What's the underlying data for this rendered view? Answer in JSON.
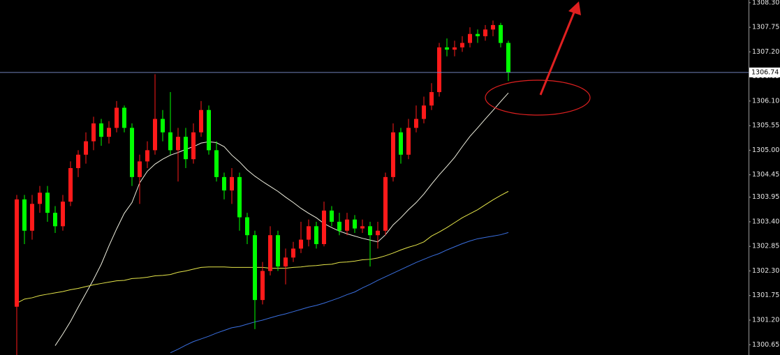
{
  "chart_data": {
    "type": "candlestick",
    "ylim": [
      1300.42,
      1308.36
    ],
    "yticks": [
      {
        "value": 1308.3,
        "label": "1308.30"
      },
      1307.75,
      {
        "value": 1307.2,
        "label": "1307.20"
      },
      1306.65,
      {
        "value": 1306.1,
        "label": "1306.10"
      },
      1305.55,
      {
        "value": 1305,
        "label": "1305.00"
      },
      1304.45,
      1303.95,
      {
        "value": 1303.4,
        "label": "1303.40"
      },
      1302.85,
      {
        "value": 1302.3,
        "label": "1302.30"
      },
      1301.75,
      {
        "value": 1301.2,
        "label": "1301.20"
      },
      1300.65
    ],
    "last_price": 1306.74,
    "up_color": "#ff1a1a",
    "down_color": "#00ff00",
    "last_price_line_color": "#6f7fb8",
    "open": [
      1301.5,
      1303.9,
      1303.2,
      1303.8,
      1304.05,
      1303.6,
      1303.3,
      1303.85,
      1304.6,
      1304.9,
      1305.2,
      1305.6,
      1305.3,
      1305.5,
      1305.95,
      1305.5,
      1304.4,
      1304.75,
      1305.0,
      1305.7,
      1305.4,
      1305.0,
      1305.3,
      1304.8,
      1305.4,
      1305.9,
      1305.0,
      1304.4,
      1304.1,
      1304.4,
      1303.5,
      1303.1,
      1301.65,
      1302.3,
      1303.1,
      1302.4,
      1302.6,
      1302.8,
      1303.0,
      1303.3,
      1302.9,
      1303.65,
      1303.4,
      1303.2,
      1303.45,
      1303.25,
      1303.3,
      1303.1,
      1303.2,
      1304.4,
      1305.4,
      1304.9,
      1305.5,
      1305.7,
      1306.0,
      1306.3,
      1307.3,
      1307.25,
      1307.3,
      1307.4,
      1307.6,
      1307.55,
      1307.7,
      1307.8,
      1307.4
    ],
    "high": [
      1304.0,
      1304.0,
      1304.0,
      1304.2,
      1304.2,
      1303.75,
      1304.0,
      1304.75,
      1305.0,
      1305.4,
      1305.75,
      1305.7,
      1305.65,
      1306.1,
      1306.0,
      1305.6,
      1304.9,
      1305.2,
      1306.7,
      1305.9,
      1306.3,
      1305.5,
      1305.5,
      1305.6,
      1306.1,
      1306.0,
      1305.2,
      1304.5,
      1304.6,
      1304.5,
      1303.6,
      1303.2,
      1302.5,
      1303.3,
      1303.2,
      1302.8,
      1302.95,
      1303.4,
      1303.45,
      1303.4,
      1303.85,
      1303.75,
      1303.6,
      1303.6,
      1303.55,
      1303.45,
      1303.4,
      1303.4,
      1304.5,
      1305.6,
      1305.5,
      1305.7,
      1306.0,
      1306.2,
      1306.5,
      1307.4,
      1307.5,
      1307.45,
      1307.55,
      1307.75,
      1307.7,
      1307.8,
      1307.9,
      1307.85,
      1307.45
    ],
    "low": [
      1300.4,
      1302.9,
      1303.0,
      1303.6,
      1303.4,
      1303.15,
      1303.2,
      1303.75,
      1304.4,
      1304.7,
      1305.0,
      1305.1,
      1305.15,
      1305.4,
      1305.4,
      1304.2,
      1303.8,
      1304.6,
      1304.9,
      1305.2,
      1304.9,
      1304.3,
      1304.6,
      1304.7,
      1305.3,
      1304.9,
      1304.3,
      1303.9,
      1303.8,
      1303.2,
      1302.9,
      1301.0,
      1301.55,
      1302.2,
      1302.3,
      1302.0,
      1302.5,
      1302.7,
      1302.85,
      1302.8,
      1302.85,
      1303.3,
      1303.1,
      1303.1,
      1303.15,
      1303.15,
      1302.4,
      1302.8,
      1303.1,
      1304.3,
      1304.7,
      1304.8,
      1305.4,
      1305.6,
      1305.9,
      1306.2,
      1307.1,
      1307.1,
      1307.2,
      1307.3,
      1307.4,
      1307.45,
      1307.55,
      1307.3,
      1306.55
    ],
    "close": [
      1303.9,
      1303.2,
      1303.8,
      1304.05,
      1303.6,
      1303.3,
      1303.85,
      1304.6,
      1304.9,
      1305.2,
      1305.6,
      1305.3,
      1305.5,
      1305.95,
      1305.5,
      1304.4,
      1304.75,
      1305.0,
      1305.7,
      1305.4,
      1305.0,
      1305.3,
      1304.8,
      1305.4,
      1305.9,
      1305.0,
      1304.4,
      1304.1,
      1304.4,
      1303.5,
      1303.1,
      1301.65,
      1302.3,
      1303.1,
      1302.4,
      1302.6,
      1302.8,
      1303.0,
      1303.3,
      1302.9,
      1303.65,
      1303.4,
      1303.2,
      1303.45,
      1303.25,
      1303.3,
      1303.1,
      1303.2,
      1304.4,
      1305.4,
      1304.9,
      1305.5,
      1305.7,
      1306.0,
      1306.3,
      1307.3,
      1307.25,
      1307.3,
      1307.4,
      1307.6,
      1307.55,
      1307.7,
      1307.8,
      1307.4,
      1306.74
    ],
    "series": [
      {
        "color": "#f0f0e0",
        "values": [
          null,
          null,
          null,
          null,
          null,
          1300.63,
          1300.89,
          1301.17,
          1301.49,
          1301.8,
          1302.11,
          1302.45,
          1302.86,
          1303.24,
          1303.59,
          1303.83,
          1304.27,
          1304.53,
          1304.69,
          1304.8,
          1304.89,
          1304.95,
          1305.02,
          1305.08,
          1305.16,
          1305.19,
          1305.17,
          1305.08,
          1304.89,
          1304.74,
          1304.56,
          1304.42,
          1304.3,
          1304.19,
          1304.08,
          1303.95,
          1303.83,
          1303.7,
          1303.59,
          1303.49,
          1303.36,
          1303.27,
          1303.19,
          1303.13,
          1303.08,
          1303.03,
          1302.99,
          1302.95,
          1303.11,
          1303.33,
          1303.49,
          1303.67,
          1303.83,
          1304.02,
          1304.24,
          1304.45,
          1304.64,
          1304.84,
          1305.08,
          1305.31,
          1305.5,
          1305.7,
          1305.89,
          1306.09,
          1306.28
        ]
      },
      {
        "color": "#e6e64a",
        "values": [
          1301.58,
          1301.67,
          1301.7,
          1301.75,
          1301.78,
          1301.81,
          1301.84,
          1301.88,
          1301.91,
          1301.95,
          1301.99,
          1302.02,
          1302.05,
          1302.08,
          1302.09,
          1302.13,
          1302.14,
          1302.16,
          1302.19,
          1302.2,
          1302.22,
          1302.27,
          1302.3,
          1302.34,
          1302.38,
          1302.39,
          1302.39,
          1302.39,
          1302.38,
          1302.38,
          1302.38,
          1302.38,
          1302.38,
          1302.36,
          1302.36,
          1302.36,
          1302.38,
          1302.39,
          1302.41,
          1302.42,
          1302.44,
          1302.45,
          1302.49,
          1302.5,
          1302.52,
          1302.55,
          1302.56,
          1302.59,
          1302.64,
          1302.7,
          1302.77,
          1302.83,
          1302.88,
          1302.95,
          1303.08,
          1303.17,
          1303.27,
          1303.38,
          1303.49,
          1303.58,
          1303.67,
          1303.78,
          1303.89,
          1303.99,
          1304.08
        ]
      },
      {
        "color": "#3a6fe0",
        "values": [
          null,
          null,
          null,
          null,
          null,
          null,
          null,
          null,
          null,
          null,
          null,
          null,
          null,
          null,
          null,
          null,
          null,
          null,
          null,
          null,
          1300.47,
          1300.55,
          1300.64,
          1300.72,
          1300.78,
          1300.84,
          1300.91,
          1300.97,
          1301.03,
          1301.06,
          1301.11,
          1301.16,
          1301.2,
          1301.25,
          1301.3,
          1301.34,
          1301.39,
          1301.44,
          1301.49,
          1301.53,
          1301.58,
          1301.64,
          1301.7,
          1301.77,
          1301.83,
          1301.92,
          1302.0,
          1302.09,
          1302.17,
          1302.25,
          1302.33,
          1302.41,
          1302.49,
          1302.56,
          1302.63,
          1302.69,
          1302.77,
          1302.84,
          1302.91,
          1302.97,
          1303.02,
          1303.05,
          1303.08,
          1303.11,
          1303.16
        ]
      }
    ]
  }
}
